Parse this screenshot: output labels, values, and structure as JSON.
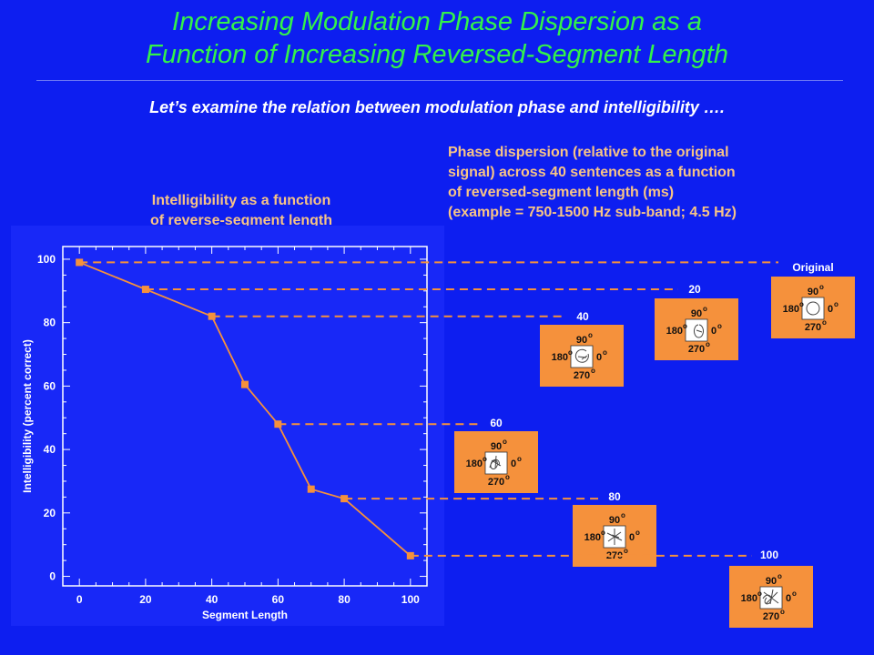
{
  "title": {
    "line1": "Increasing Modulation Phase Dispersion as a",
    "line2": "Function of Increasing Reversed-Segment Length"
  },
  "subtitle": "Let’s examine the relation between modulation phase and intelligibility ….",
  "left_caption": {
    "line1": "Intelligibility as a function",
    "line2": "of reverse-segment length"
  },
  "right_caption": {
    "lines": [
      "Phase dispersion (relative to the original",
      "signal) across 40 sentences as a function",
      "of reversed-segment length (ms)",
      "(example = 750-1500 Hz sub-band; 4.5 Hz)"
    ]
  },
  "colors": {
    "background": "#0d1ef0",
    "title": "#33f24a",
    "caption": "#f7c486",
    "series": "#f5913c",
    "panel": "#f5913c",
    "dash": "#f5913c"
  },
  "chart_data": {
    "type": "line",
    "xlabel": "Segment Length",
    "ylabel": "Intelligibility (percent correct)",
    "xlim": [
      -5,
      105
    ],
    "ylim": [
      -3,
      104
    ],
    "xticks": [
      0,
      20,
      40,
      60,
      80,
      100
    ],
    "yticks": [
      0,
      20,
      40,
      60,
      80,
      100
    ],
    "series": [
      {
        "x": [
          0,
          20,
          40,
          50,
          60,
          70,
          80,
          100
        ],
        "y": [
          99,
          90.5,
          82,
          60.5,
          48,
          27.5,
          24.5,
          6.5
        ]
      }
    ]
  },
  "phase_panels": [
    {
      "label": "Original",
      "value": 99,
      "mark": "circle"
    },
    {
      "label": "20",
      "value": 90.5,
      "mark": "small-loop"
    },
    {
      "label": "40",
      "value": 82,
      "mark": "dispersed-loop"
    },
    {
      "label": "60",
      "value": 48,
      "mark": "scribble"
    },
    {
      "label": "80",
      "value": 24.5,
      "mark": "star"
    },
    {
      "label": "100",
      "value": 6.5,
      "mark": "tangle"
    }
  ],
  "phase_axes": {
    "top": "90",
    "left": "180",
    "right": "0",
    "bottom": "270",
    "degree": "o"
  }
}
